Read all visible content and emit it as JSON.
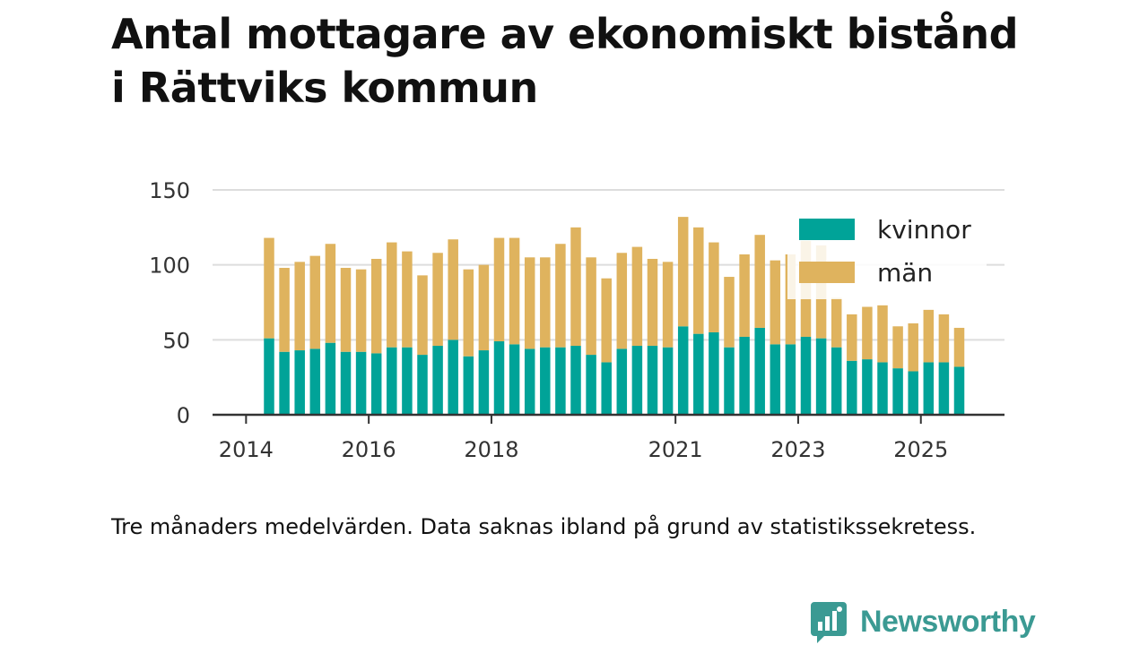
{
  "title_line1": "Antal mottagare av ekonomiskt bistånd",
  "title_line2": "i Rättviks kommun",
  "caption": "Tre månaders medelvärden. Data saknas ibland på grund av statistikssekretess.",
  "brand": {
    "name": "Newsworthy",
    "color": "#3b9a93"
  },
  "chart_data": {
    "type": "bar",
    "stacked": true,
    "title": "Antal mottagare av ekonomiskt bistånd i Rättviks kommun",
    "xlabel": "",
    "ylabel": "",
    "ylim": [
      0,
      150
    ],
    "yticks": [
      0,
      50,
      100,
      150
    ],
    "grid": true,
    "legend_position": "top-right",
    "x_tick_labels": [
      {
        "label": "2014",
        "bar_index": -1
      },
      {
        "label": "2016",
        "bar_index": 7
      },
      {
        "label": "2018",
        "bar_index": 15
      },
      {
        "label": "2021",
        "bar_index": 27
      },
      {
        "label": "2023",
        "bar_index": 35
      },
      {
        "label": "2025",
        "bar_index": 43
      }
    ],
    "series": [
      {
        "name": "kvinnor",
        "color": "#00a398",
        "values": [
          51,
          42,
          43,
          44,
          48,
          42,
          42,
          41,
          45,
          45,
          40,
          46,
          50,
          39,
          43,
          49,
          47,
          44,
          45,
          45,
          46,
          40,
          35,
          44,
          46,
          46,
          45,
          59,
          54,
          55,
          45,
          52,
          58,
          47,
          47,
          52,
          51,
          45,
          36,
          37,
          35,
          31,
          29,
          35,
          35,
          32
        ]
      },
      {
        "name": "män",
        "color": "#dfb35e",
        "values": [
          67,
          56,
          59,
          62,
          66,
          56,
          55,
          63,
          70,
          64,
          53,
          62,
          67,
          58,
          57,
          69,
          71,
          61,
          60,
          69,
          79,
          65,
          56,
          64,
          66,
          58,
          57,
          73,
          71,
          60,
          47,
          55,
          62,
          56,
          60,
          64,
          62,
          33,
          31,
          35,
          38,
          28,
          32,
          35,
          32,
          26
        ]
      }
    ]
  }
}
